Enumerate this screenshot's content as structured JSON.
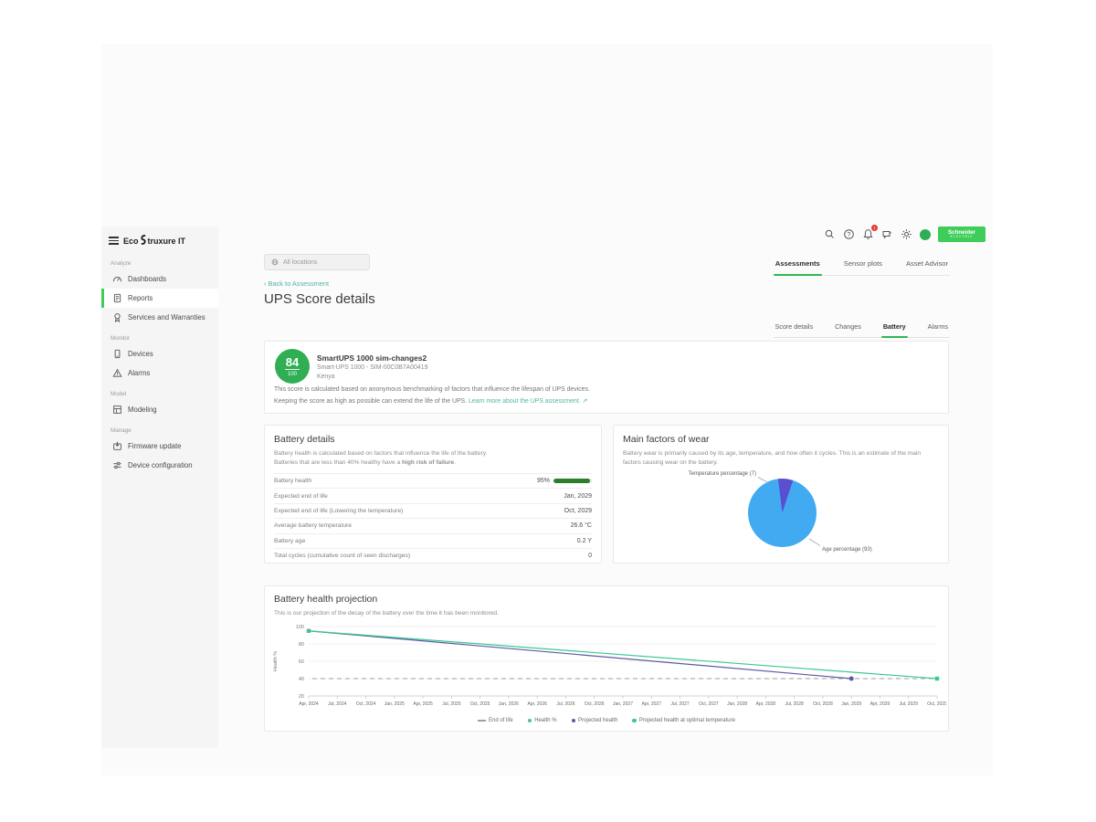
{
  "brand": {
    "logo_prefix": "Eco",
    "logo_suffix": "truxure IT",
    "schneider_line1": "Schneider",
    "schneider_line2": "ELECTRIC"
  },
  "topbar": {
    "location_filter": "All locations",
    "notification_count": "1"
  },
  "sidebar": {
    "sections": [
      {
        "label": "Analyze",
        "items": [
          {
            "label": "Dashboards",
            "icon": "dashboards-icon",
            "active": false
          },
          {
            "label": "Reports",
            "icon": "reports-icon",
            "active": true
          },
          {
            "label": "Services and Warranties",
            "icon": "services-icon",
            "active": false
          }
        ]
      },
      {
        "label": "Monitor",
        "items": [
          {
            "label": "Devices",
            "icon": "devices-icon",
            "active": false
          },
          {
            "label": "Alarms",
            "icon": "alarms-icon",
            "active": false
          }
        ]
      },
      {
        "label": "Model",
        "items": [
          {
            "label": "Modeling",
            "icon": "modeling-icon",
            "active": false
          }
        ]
      },
      {
        "label": "Manage",
        "items": [
          {
            "label": "Firmware update",
            "icon": "firmware-icon",
            "active": false
          },
          {
            "label": "Device configuration",
            "icon": "config-icon",
            "active": false
          }
        ]
      }
    ]
  },
  "page_tabs": [
    {
      "label": "Assessments",
      "active": true
    },
    {
      "label": "Sensor plots",
      "active": false
    },
    {
      "label": "Asset Advisor",
      "active": false
    }
  ],
  "back_link_arrow": "‹",
  "back_link": "Back to Assessment",
  "page_title": "UPS Score details",
  "detail_tabs": [
    {
      "label": "Score details",
      "active": false
    },
    {
      "label": "Changes",
      "active": false
    },
    {
      "label": "Battery",
      "active": true
    },
    {
      "label": "Alarms",
      "active": false
    }
  ],
  "score_card": {
    "score": "84",
    "score_max": "100",
    "device_name": "SmartUPS 1000 sim-changes2",
    "device_model": "Smart-UPS 1000 - SIM-00C0B7A00419",
    "device_location": "Kenya",
    "description_line1": "This score is calculated based on anonymous benchmarking of factors that influence the lifespan of UPS devices.",
    "description_line2": "Keeping the score as high as possible can extend the life of the UPS.",
    "learn_more_link": "Learn more about the UPS assessment.",
    "external_icon": "↗"
  },
  "battery_details": {
    "title": "Battery details",
    "description_line1": "Battery health is calculated based on factors that influence the life of the battery.",
    "description_line2_prefix": "Batteries that are less than 40% healthy have a ",
    "description_line2_bold": "high risk of failure",
    "description_line2_suffix": ".",
    "rows": [
      {
        "label": "Battery health",
        "value": "95%",
        "progress": 95
      },
      {
        "label": "Expected end of life",
        "value": "Jan, 2029"
      },
      {
        "label": "Expected end of life (Lowering the temperature)",
        "value": "Oct, 2029"
      },
      {
        "label": "Average battery temperature",
        "value": "26.6 °C"
      },
      {
        "label": "Battery age",
        "value": "0.2 Y"
      },
      {
        "label": "Total cycles (cumulative count of seen discharges)",
        "value": "0"
      }
    ]
  },
  "wear_factors": {
    "title": "Main factors of wear",
    "description": "Battery wear is primarily caused by its age, temperature, and how often it cycles. This is an estimate of the main factors causing wear on the battery."
  },
  "projection": {
    "title": "Battery health projection",
    "description": "This is our projection of the decay of the battery over the time it has been monitored."
  },
  "chart_data": [
    {
      "type": "pie",
      "title": "Main factors of wear",
      "slices": [
        {
          "label": "Age percentage",
          "value": 93,
          "color": "#41aaf0",
          "display": "Age percentage (93)"
        },
        {
          "label": "Temperature percentage",
          "value": 7,
          "color": "#5a4fcf",
          "display": "Temperature percentage (7)"
        }
      ],
      "start_angle_deg": -7
    },
    {
      "type": "line",
      "title": "Battery health projection",
      "xlabel": "",
      "ylabel": "Health %",
      "ylim": [
        20,
        100
      ],
      "yticks": [
        20,
        40,
        60,
        80,
        100
      ],
      "grid": true,
      "legend_position": "bottom",
      "categories": [
        "Apr, 2024",
        "Jul, 2024",
        "Oct, 2024",
        "Jan, 2025",
        "Apr, 2025",
        "Jul, 2025",
        "Oct, 2025",
        "Jan, 2026",
        "Apr, 2026",
        "Jul, 2026",
        "Oct, 2026",
        "Jan, 2027",
        "Apr, 2027",
        "Jul, 2027",
        "Oct, 2027",
        "Jan, 2028",
        "Apr, 2028",
        "Jul, 2028",
        "Oct, 2028",
        "Jan, 2029",
        "Apr, 2029",
        "Jul, 2029",
        "Oct, 2029"
      ],
      "series": [
        {
          "name": "End of life",
          "style": "dashed",
          "color": "#9e9e9e",
          "constant": 40
        },
        {
          "name": "Health %",
          "style": "solid",
          "color": "#52b9ac",
          "marker": "square",
          "points": [
            {
              "x": "Apr, 2024",
              "y": 95
            }
          ]
        },
        {
          "name": "Projected health",
          "style": "solid",
          "color": "#5b5aa8",
          "marker": "circle",
          "points": [
            {
              "x": "Apr, 2024",
              "y": 95
            },
            {
              "x": "Jan, 2029",
              "y": 40
            }
          ]
        },
        {
          "name": "Projected health at optimal temperature",
          "style": "solid",
          "color": "#3bc98c",
          "marker": "square",
          "points": [
            {
              "x": "Apr, 2024",
              "y": 95
            },
            {
              "x": "Oct, 2029",
              "y": 40
            }
          ]
        }
      ]
    }
  ]
}
